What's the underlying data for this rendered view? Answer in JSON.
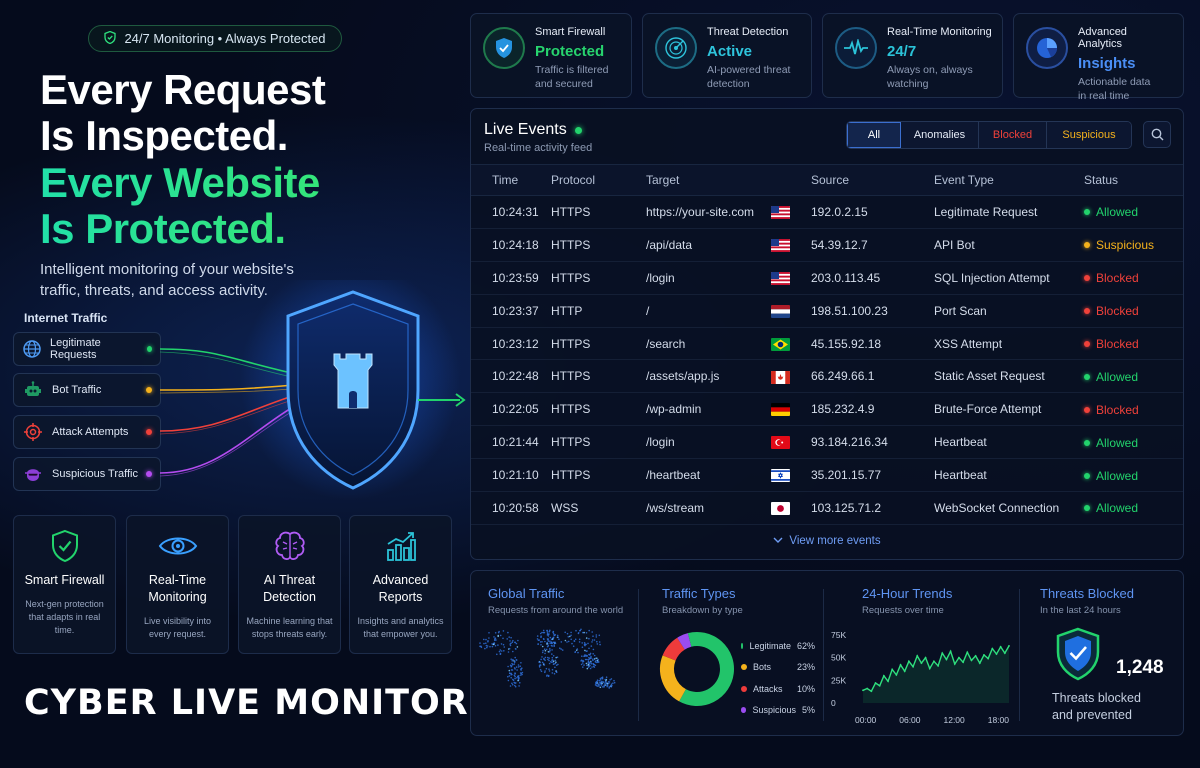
{
  "hero": {
    "badge": "24/7 Monitoring • Always Protected",
    "line1": "Every Request",
    "line2": "Is Inspected.",
    "line3": "Every Website",
    "line4": "Is Protected.",
    "subtitle": "Intelligent monitoring of your website's traffic, threats, and access activity."
  },
  "internet_traffic": {
    "title": "Internet Traffic",
    "items": [
      {
        "label": "Legitimate Requests",
        "color": "#22d36c",
        "icon": "globe-icon"
      },
      {
        "label": "Bot Traffic",
        "color": "#f5b21c",
        "icon": "robot-icon"
      },
      {
        "label": "Attack Attempts",
        "color": "#f0413a",
        "icon": "target-icon"
      },
      {
        "label": "Suspicious Traffic",
        "color": "#b44cf0",
        "icon": "hacker-icon"
      }
    ]
  },
  "features": [
    {
      "title": "Smart Firewall",
      "desc": "Next-gen protection that adapts in real time.",
      "icon": "shield-check-icon"
    },
    {
      "title": "Real-Time Monitoring",
      "desc": "Live visibility into every request.",
      "icon": "eye-icon"
    },
    {
      "title": "AI Threat Detection",
      "desc": "Machine learning that stops threats early.",
      "icon": "brain-icon"
    },
    {
      "title": "Advanced Reports",
      "desc": "Insights and analytics that empower you.",
      "icon": "bar-chart-icon"
    }
  ],
  "brand": "CYBER LIVE MONITOR",
  "stats": [
    {
      "label": "Smart Firewall",
      "value": "Protected",
      "desc1": "Traffic is filtered",
      "desc2": "and secured",
      "color": "#27d46e"
    },
    {
      "label": "Threat Detection",
      "value": "Active",
      "desc1": "AI-powered threat",
      "desc2": "detection",
      "color": "#2ec4dc"
    },
    {
      "label": "Real-Time Monitoring",
      "value": "24/7",
      "desc1": "Always on, always",
      "desc2": "watching",
      "color": "#2bc3d8"
    },
    {
      "label": "Advanced Analytics",
      "value": "Insights",
      "desc1": "Actionable data",
      "desc2": "in real time",
      "color": "#4a8ef5"
    }
  ],
  "events": {
    "title": "Live Events",
    "subtitle": "Real-time activity feed",
    "filters": [
      {
        "label": "All",
        "color": "#ffffff"
      },
      {
        "label": "Anomalies",
        "color": "#e6ecf7"
      },
      {
        "label": "Blocked",
        "color": "#f0413a"
      },
      {
        "label": "Suspicious",
        "color": "#f5b21c"
      }
    ],
    "columns": [
      "Time",
      "Protocol",
      "Target",
      "Source",
      "Event Type",
      "Status"
    ],
    "rows": [
      {
        "time": "10:24:31",
        "protocol": "HTTPS",
        "target": "https://your-site.com",
        "flag": "us",
        "source": "192.0.2.15",
        "event": "Legitimate Request",
        "status": "Allowed"
      },
      {
        "time": "10:24:18",
        "protocol": "HTTPS",
        "target": "/api/data",
        "flag": "us",
        "source": "54.39.12.7",
        "event": "API Bot",
        "status": "Suspicious"
      },
      {
        "time": "10:23:59",
        "protocol": "HTTPS",
        "target": "/login",
        "flag": "us",
        "source": "203.0.113.45",
        "event": "SQL Injection Attempt",
        "status": "Blocked"
      },
      {
        "time": "10:23:37",
        "protocol": "HTTP",
        "target": "/",
        "flag": "nl",
        "source": "198.51.100.23",
        "event": "Port Scan",
        "status": "Blocked"
      },
      {
        "time": "10:23:12",
        "protocol": "HTTPS",
        "target": "/search",
        "flag": "br",
        "source": "45.155.92.18",
        "event": "XSS Attempt",
        "status": "Blocked"
      },
      {
        "time": "10:22:48",
        "protocol": "HTTPS",
        "target": "/assets/app.js",
        "flag": "ca",
        "source": "66.249.66.1",
        "event": "Static Asset Request",
        "status": "Allowed"
      },
      {
        "time": "10:22:05",
        "protocol": "HTTPS",
        "target": "/wp-admin",
        "flag": "de",
        "source": "185.232.4.9",
        "event": "Brute-Force Attempt",
        "status": "Blocked"
      },
      {
        "time": "10:21:44",
        "protocol": "HTTPS",
        "target": "/login",
        "flag": "tr",
        "source": "93.184.216.34",
        "event": "Heartbeat",
        "status": "Allowed"
      },
      {
        "time": "10:21:10",
        "protocol": "HTTPS",
        "target": "/heartbeat",
        "flag": "il",
        "source": "35.201.15.77",
        "event": "Heartbeat",
        "status": "Allowed"
      },
      {
        "time": "10:20:58",
        "protocol": "WSS",
        "target": "/ws/stream",
        "flag": "jp",
        "source": "103.125.71.2",
        "event": "WebSocket Connection",
        "status": "Allowed"
      }
    ],
    "view_more": "View more events",
    "status_colors": {
      "Allowed": "#22d36c",
      "Suspicious": "#f5b21c",
      "Blocked": "#f0413a"
    }
  },
  "global_traffic": {
    "title": "Global Traffic",
    "subtitle": "Requests from around the world"
  },
  "traffic_types": {
    "title": "Traffic Types",
    "subtitle": "Breakdown by type",
    "items": [
      {
        "label": "Legitimate",
        "value": 62,
        "pct": "62%",
        "color": "#22c46a"
      },
      {
        "label": "Bots",
        "value": 23,
        "pct": "23%",
        "color": "#f5b21c"
      },
      {
        "label": "Attacks",
        "value": 10,
        "pct": "10%",
        "color": "#ee3b3b"
      },
      {
        "label": "Suspicious",
        "value": 5,
        "pct": "5%",
        "color": "#9a4cf0"
      }
    ]
  },
  "trends": {
    "title": "24-Hour Trends",
    "subtitle": "Requests over time",
    "y_ticks": [
      "75K",
      "50K",
      "25K",
      "0"
    ],
    "x_ticks": [
      "00:00",
      "06:00",
      "12:00",
      "18:00"
    ]
  },
  "threats": {
    "title": "Threats Blocked",
    "subtitle": "In the last 24 hours",
    "count": "1,248",
    "label1": "Threats blocked",
    "label2": "and prevented"
  },
  "chart_data": {
    "type": "line",
    "title": "24-Hour Trends",
    "subtitle": "Requests over time",
    "xlabel": "",
    "ylabel": "",
    "x_ticks": [
      "00:00",
      "06:00",
      "12:00",
      "18:00"
    ],
    "ylim": [
      0,
      75000
    ],
    "series": [
      {
        "values": [
          14000,
          16000,
          13000,
          22000,
          19000,
          30000,
          24000,
          37000,
          31000,
          42000,
          35000,
          46000,
          40000,
          52000,
          44000,
          50000,
          38000,
          46000,
          41000,
          55000,
          48000,
          57000,
          43000,
          50000,
          45000,
          56000,
          47000,
          52000,
          44000,
          53000,
          49000,
          60000,
          54000,
          62000,
          55000,
          63000
        ]
      }
    ]
  }
}
